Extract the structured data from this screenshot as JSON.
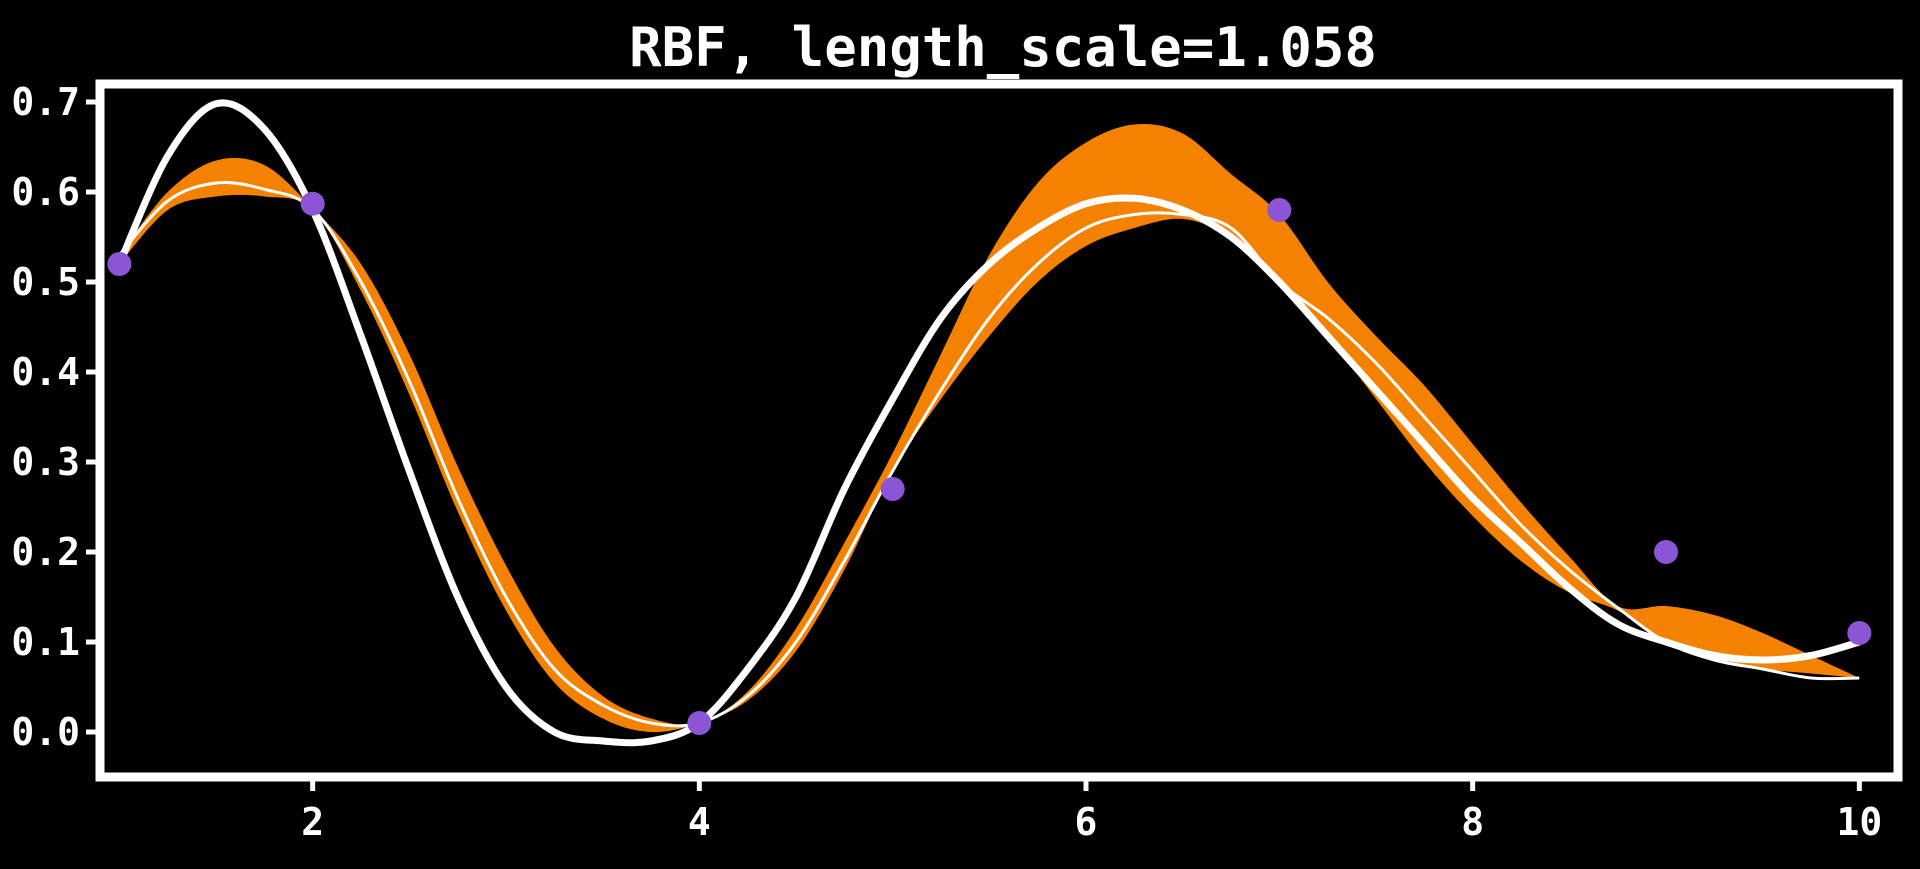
{
  "colors": {
    "background": "#000000",
    "frame": "#ffffff",
    "true_function": "#ffffff",
    "prediction": "#ffffff",
    "uncertainty_band": "#f58100",
    "observations": "#8a56d6"
  },
  "chart_data": {
    "type": "line",
    "title": "RBF, length_scale=1.058",
    "xlabel": "",
    "ylabel": "",
    "xlim": [
      0.9,
      10.2
    ],
    "ylim": [
      -0.05,
      0.72
    ],
    "x_ticks": [
      2,
      4,
      6,
      8,
      10
    ],
    "x_tick_labels": [
      "2",
      "4",
      "6",
      "8",
      "10"
    ],
    "y_ticks": [
      0.0,
      0.1,
      0.2,
      0.3,
      0.4,
      0.5,
      0.6,
      0.7
    ],
    "y_tick_labels": [
      "0.0",
      "0.1",
      "0.2",
      "0.3",
      "0.4",
      "0.5",
      "0.6",
      "0.7"
    ],
    "grid": false,
    "legend": "none",
    "series": [
      {
        "role": "true_function",
        "x": [
          1.0,
          1.25,
          1.5,
          1.75,
          2.0,
          2.25,
          2.5,
          2.75,
          3.0,
          3.25,
          3.5,
          3.75,
          4.0,
          4.25,
          4.5,
          4.75,
          5.0,
          5.25,
          5.5,
          5.75,
          6.0,
          6.25,
          6.5,
          6.75,
          7.0,
          7.25,
          7.5,
          7.75,
          8.0,
          8.25,
          8.5,
          8.75,
          9.0,
          9.25,
          9.5,
          9.75,
          10.0
        ],
        "y": [
          0.52,
          0.64,
          0.698,
          0.67,
          0.58,
          0.44,
          0.29,
          0.15,
          0.05,
          0.0,
          -0.01,
          -0.01,
          0.01,
          0.07,
          0.15,
          0.27,
          0.37,
          0.46,
          0.52,
          0.56,
          0.587,
          0.593,
          0.58,
          0.55,
          0.5,
          0.44,
          0.38,
          0.32,
          0.26,
          0.21,
          0.16,
          0.12,
          0.1,
          0.085,
          0.08,
          0.085,
          0.1
        ]
      },
      {
        "role": "prediction",
        "x": [
          1.0,
          1.25,
          1.5,
          1.75,
          2.0,
          2.25,
          2.5,
          2.75,
          3.0,
          3.25,
          3.5,
          3.75,
          4.0,
          4.25,
          4.5,
          4.75,
          5.0,
          5.25,
          5.5,
          5.75,
          6.0,
          6.25,
          6.5,
          6.75,
          7.0,
          7.25,
          7.5,
          7.75,
          8.0,
          8.25,
          8.5,
          8.75,
          9.0,
          9.25,
          9.5,
          9.75,
          10.0
        ],
        "y": [
          0.53,
          0.59,
          0.61,
          0.603,
          0.581,
          0.5,
          0.39,
          0.26,
          0.15,
          0.07,
          0.03,
          0.01,
          0.01,
          0.04,
          0.1,
          0.19,
          0.29,
          0.38,
          0.46,
          0.52,
          0.56,
          0.575,
          0.575,
          0.56,
          0.5,
          0.46,
          0.41,
          0.35,
          0.29,
          0.23,
          0.18,
          0.138,
          0.1,
          0.08,
          0.07,
          0.06,
          0.06
        ]
      },
      {
        "role": "uncertainty_lower",
        "x": [
          1.0,
          1.25,
          1.5,
          1.75,
          2.0,
          2.25,
          2.5,
          2.75,
          3.0,
          3.25,
          3.5,
          3.75,
          4.0,
          4.25,
          4.5,
          4.75,
          5.0,
          5.25,
          5.5,
          5.75,
          6.0,
          6.25,
          6.5,
          6.75,
          7.0,
          7.25,
          7.5,
          7.75,
          8.0,
          8.25,
          8.5,
          8.75,
          9.0,
          9.25,
          9.5,
          9.75,
          10.0
        ],
        "y": [
          0.52,
          0.58,
          0.595,
          0.595,
          0.58,
          0.49,
          0.375,
          0.245,
          0.135,
          0.055,
          0.015,
          0.0,
          0.01,
          0.035,
          0.09,
          0.18,
          0.29,
          0.37,
          0.44,
          0.5,
          0.54,
          0.56,
          0.57,
          0.55,
          0.5,
          0.44,
          0.37,
          0.3,
          0.24,
          0.19,
          0.155,
          0.135,
          0.1,
          0.08,
          0.07,
          0.065,
          0.06
        ]
      },
      {
        "role": "uncertainty_upper",
        "x": [
          1.0,
          1.25,
          1.5,
          1.75,
          2.0,
          2.25,
          2.5,
          2.75,
          3.0,
          3.25,
          3.5,
          3.75,
          4.0,
          4.25,
          4.5,
          4.75,
          5.0,
          5.25,
          5.5,
          5.75,
          6.0,
          6.25,
          6.5,
          6.75,
          7.0,
          7.25,
          7.5,
          7.75,
          8.0,
          8.25,
          8.5,
          8.75,
          9.0,
          9.25,
          9.5,
          9.75,
          10.0
        ],
        "y": [
          0.53,
          0.6,
          0.635,
          0.63,
          0.582,
          0.52,
          0.42,
          0.295,
          0.185,
          0.095,
          0.04,
          0.015,
          0.01,
          0.045,
          0.115,
          0.21,
          0.31,
          0.42,
          0.53,
          0.61,
          0.655,
          0.675,
          0.665,
          0.62,
          0.575,
          0.5,
          0.44,
          0.385,
          0.32,
          0.255,
          0.195,
          0.14,
          0.14,
          0.13,
          0.11,
          0.085,
          0.06
        ]
      },
      {
        "role": "observations",
        "x": [
          1.0,
          2.0,
          4.0,
          5.0,
          7.0,
          9.0,
          10.0
        ],
        "y": [
          0.52,
          0.587,
          0.01,
          0.27,
          0.58,
          0.2,
          0.11
        ]
      }
    ]
  }
}
